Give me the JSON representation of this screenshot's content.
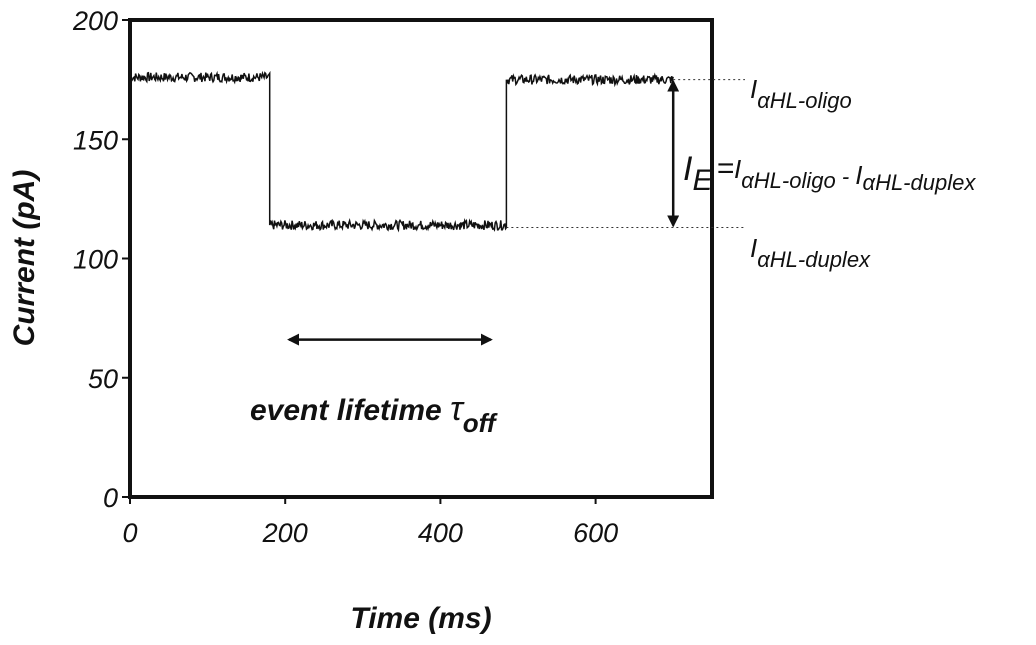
{
  "chart_data": {
    "type": "line",
    "title": "",
    "xlabel": "Time (ms)",
    "ylabel": "Current (pA)",
    "xlim": [
      0,
      750
    ],
    "ylim": [
      0,
      200
    ],
    "x_ticks": [
      "0",
      "200",
      "400",
      "600"
    ],
    "y_ticks": [
      "0",
      "50",
      "100",
      "150",
      "200"
    ],
    "series": [
      {
        "x": [
          0,
          180,
          180,
          485,
          485,
          700
        ],
        "y": [
          176,
          176,
          114,
          114,
          175,
          175
        ],
        "noise_pA": 2
      }
    ],
    "levels": {
      "oligo": 175,
      "duplex": 113
    },
    "annotations": {
      "oligo_label": {
        "base": "I",
        "sub": "αHL-oligo"
      },
      "duplex_label": {
        "base": "I",
        "sub": "αHL-duplex"
      },
      "ie_label": {
        "base": "I",
        "sub": "E",
        "equals": "=",
        "term1_base": "I",
        "term1_sub": "αHL-oligo",
        "minus": " - ",
        "term2_base": "I",
        "term2_sub": "αHL-duplex"
      },
      "lifetime_label": {
        "text": "event lifetime ",
        "tau": "τ",
        "sub": "off"
      },
      "lifetime_arrow_x": [
        205,
        465
      ],
      "lifetime_arrow_y": 66
    }
  }
}
